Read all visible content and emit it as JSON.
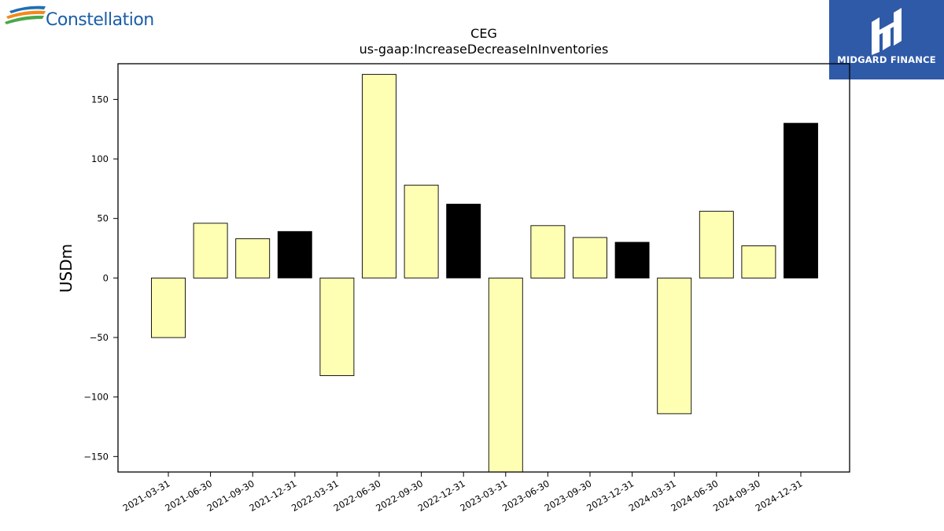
{
  "logos": {
    "left_brand": "Constellation",
    "right_brand": "MIDGARD FINANCE"
  },
  "colors": {
    "bar_default": "#ffffb3",
    "bar_highlight": "#000000",
    "logo_right_bg": "#2f5aa8",
    "logo_left_text": "#1a5ea8"
  },
  "chart_data": {
    "type": "bar",
    "title": "CEG",
    "subtitle": "us-gaap:IncreaseDecreaseInInventories",
    "xlabel": "",
    "ylabel": "USDm",
    "ylim": [
      -163,
      180
    ],
    "yticks": [
      -150,
      -100,
      -50,
      0,
      50,
      100,
      150
    ],
    "ytick_labels": [
      "−150",
      "−100",
      "−50",
      "0",
      "50",
      "100",
      "150"
    ],
    "grid": false,
    "categories": [
      "2021-03-31",
      "2021-06-30",
      "2021-09-30",
      "2021-12-31",
      "2022-03-31",
      "2022-06-30",
      "2022-09-30",
      "2022-12-31",
      "2023-03-31",
      "2023-06-30",
      "2023-09-30",
      "2023-12-31",
      "2024-03-31",
      "2024-06-30",
      "2024-09-30",
      "2024-12-31"
    ],
    "values": [
      -50,
      46,
      33,
      39,
      -82,
      171,
      78,
      62,
      -163,
      44,
      34,
      30,
      -114,
      56,
      27,
      130
    ],
    "highlight": [
      false,
      false,
      false,
      true,
      false,
      false,
      false,
      true,
      false,
      false,
      false,
      true,
      false,
      false,
      false,
      true
    ]
  }
}
